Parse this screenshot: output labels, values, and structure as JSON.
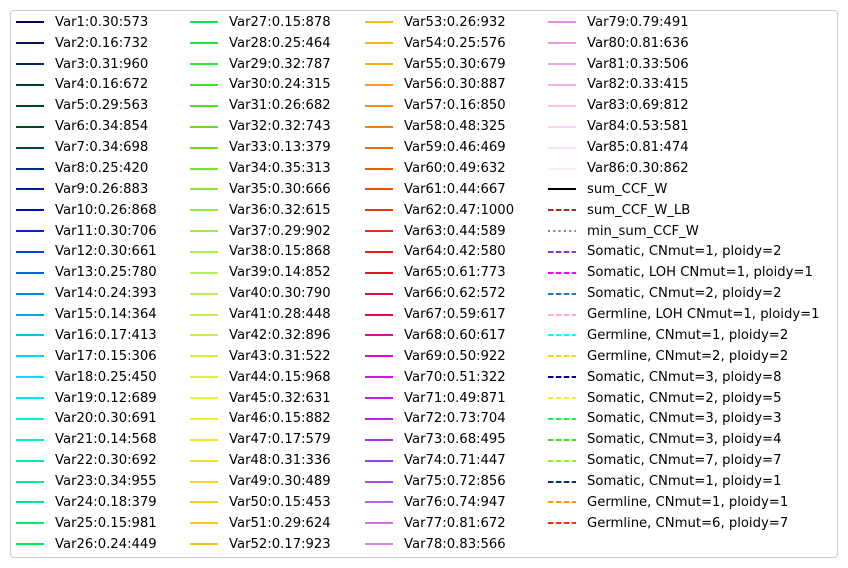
{
  "chart_data": {
    "type": "line",
    "title": "",
    "legend": {
      "placement": "full-frame",
      "columns": 4,
      "frame": true,
      "entries": [
        {
          "label": "Var1:0.30:573",
          "color": "#00004d",
          "style": "solid"
        },
        {
          "label": "Var2:0.16:732",
          "color": "#001552",
          "style": "solid"
        },
        {
          "label": "Var3:0.31:960",
          "color": "#002857",
          "style": "solid"
        },
        {
          "label": "Var4:0.16:672",
          "color": "#003b3b",
          "style": "solid"
        },
        {
          "label": "Var5:0.29:563",
          "color": "#00461d",
          "style": "solid"
        },
        {
          "label": "Var6:0.34:854",
          "color": "#004a1a",
          "style": "solid"
        },
        {
          "label": "Var7:0.34:698",
          "color": "#00404f",
          "style": "solid"
        },
        {
          "label": "Var8:0.25:420",
          "color": "#002e7a",
          "style": "solid"
        },
        {
          "label": "Var9:0.26:883",
          "color": "#001a99",
          "style": "solid"
        },
        {
          "label": "Var10:0.26:868",
          "color": "#0010b5",
          "style": "solid"
        },
        {
          "label": "Var11:0.30:706",
          "color": "#0027c7",
          "style": "solid"
        },
        {
          "label": "Var12:0.30:661",
          "color": "#0044d6",
          "style": "solid"
        },
        {
          "label": "Var13:0.25:780",
          "color": "#0066d0",
          "style": "solid"
        },
        {
          "label": "Var14:0.24:393",
          "color": "#0088dd",
          "style": "solid"
        },
        {
          "label": "Var15:0.14:364",
          "color": "#00a8e6",
          "style": "solid"
        },
        {
          "label": "Var16:0.17:413",
          "color": "#00c0f0",
          "style": "solid"
        },
        {
          "label": "Var17:0.15:306",
          "color": "#00d2f5",
          "style": "solid"
        },
        {
          "label": "Var18:0.25:450",
          "color": "#00e0f2",
          "style": "solid"
        },
        {
          "label": "Var19:0.12:689",
          "color": "#00e8ee",
          "style": "solid"
        },
        {
          "label": "Var20:0.30:691",
          "color": "#00eedd",
          "style": "solid"
        },
        {
          "label": "Var21:0.14:568",
          "color": "#00eec8",
          "style": "solid"
        },
        {
          "label": "Var22:0.30:692",
          "color": "#00eab2",
          "style": "solid"
        },
        {
          "label": "Var23:0.34:955",
          "color": "#00e89c",
          "style": "solid"
        },
        {
          "label": "Var24:0.18:379",
          "color": "#00e685",
          "style": "solid"
        },
        {
          "label": "Var25:0.15:981",
          "color": "#00e66e",
          "style": "solid"
        },
        {
          "label": "Var26:0.24:449",
          "color": "#00e655",
          "style": "solid"
        },
        {
          "label": "Var27:0.15:878",
          "color": "#10e64a",
          "style": "solid"
        },
        {
          "label": "Var28:0.25:464",
          "color": "#20e63c",
          "style": "solid"
        },
        {
          "label": "Var29:0.32:787",
          "color": "#33e633",
          "style": "solid"
        },
        {
          "label": "Var30:0.24:315",
          "color": "#44e02c",
          "style": "solid"
        },
        {
          "label": "Var31:0.26:682",
          "color": "#55dd22",
          "style": "solid"
        },
        {
          "label": "Var32:0.32:743",
          "color": "#66dd22",
          "style": "solid"
        },
        {
          "label": "Var33:0.13:379",
          "color": "#70da20",
          "style": "solid"
        },
        {
          "label": "Var34:0.35:313",
          "color": "#7ee02a",
          "style": "solid"
        },
        {
          "label": "Var35:0.30:666",
          "color": "#88e633",
          "style": "solid"
        },
        {
          "label": "Var36:0.32:615",
          "color": "#92ea3c",
          "style": "solid"
        },
        {
          "label": "Var37:0.29:902",
          "color": "#9cee44",
          "style": "solid"
        },
        {
          "label": "Var38:0.15:868",
          "color": "#a6f04c",
          "style": "solid"
        },
        {
          "label": "Var39:0.14:852",
          "color": "#b0f252",
          "style": "solid"
        },
        {
          "label": "Var40:0.30:790",
          "color": "#baf055",
          "style": "solid"
        },
        {
          "label": "Var41:0.28:448",
          "color": "#c4f052",
          "style": "solid"
        },
        {
          "label": "Var42:0.32:896",
          "color": "#ccee4a",
          "style": "solid"
        },
        {
          "label": "Var43:0.31:522",
          "color": "#d6ee44",
          "style": "solid"
        },
        {
          "label": "Var44:0.15:968",
          "color": "#e0f040",
          "style": "solid"
        },
        {
          "label": "Var45:0.32:631",
          "color": "#e8f23c",
          "style": "solid"
        },
        {
          "label": "Var46:0.15:882",
          "color": "#eeee33",
          "style": "solid"
        },
        {
          "label": "Var47:0.17:579",
          "color": "#f0e82c",
          "style": "solid"
        },
        {
          "label": "Var48:0.31:336",
          "color": "#f2e026",
          "style": "solid"
        },
        {
          "label": "Var49:0.30:489",
          "color": "#f4d822",
          "style": "solid"
        },
        {
          "label": "Var50:0.15:453",
          "color": "#f6d020",
          "style": "solid"
        },
        {
          "label": "Var51:0.29:624",
          "color": "#f7c71e",
          "style": "solid"
        },
        {
          "label": "Var52:0.17:923",
          "color": "#f8c01c",
          "style": "solid"
        },
        {
          "label": "Var53:0.26:932",
          "color": "#f8bc1a",
          "style": "solid"
        },
        {
          "label": "Var54:0.25:576",
          "color": "#f8b418",
          "style": "solid"
        },
        {
          "label": "Var55:0.30:679",
          "color": "#f8aa16",
          "style": "solid"
        },
        {
          "label": "Var56:0.30:887",
          "color": "#f89e14",
          "style": "solid"
        },
        {
          "label": "Var57:0.16:850",
          "color": "#f69012",
          "style": "solid"
        },
        {
          "label": "Var58:0.48:325",
          "color": "#f28010",
          "style": "solid"
        },
        {
          "label": "Var59:0.46:469",
          "color": "#ef6e10",
          "style": "solid"
        },
        {
          "label": "Var60:0.49:632",
          "color": "#ec5c10",
          "style": "solid"
        },
        {
          "label": "Var61:0.44:667",
          "color": "#e94a10",
          "style": "solid"
        },
        {
          "label": "Var62:0.47:1000",
          "color": "#e63a10",
          "style": "solid"
        },
        {
          "label": "Var63:0.44:589",
          "color": "#e42c12",
          "style": "solid"
        },
        {
          "label": "Var64:0.42:580",
          "color": "#e21e16",
          "style": "solid"
        },
        {
          "label": "Var65:0.61:773",
          "color": "#e0141e",
          "style": "solid"
        },
        {
          "label": "Var66:0.62:572",
          "color": "#e00e3a",
          "style": "solid"
        },
        {
          "label": "Var67:0.59:617",
          "color": "#e00a5a",
          "style": "solid"
        },
        {
          "label": "Var68:0.60:617",
          "color": "#e0089a",
          "style": "solid"
        },
        {
          "label": "Var69:0.50:922",
          "color": "#e00ad0",
          "style": "solid"
        },
        {
          "label": "Var70:0.51:322",
          "color": "#d810e2",
          "style": "solid"
        },
        {
          "label": "Var71:0.49:871",
          "color": "#c818e6",
          "style": "solid"
        },
        {
          "label": "Var72:0.73:704",
          "color": "#b824e6",
          "style": "solid"
        },
        {
          "label": "Var73:0.68:495",
          "color": "#a830e2",
          "style": "solid"
        },
        {
          "label": "Var74:0.71:447",
          "color": "#9c40e0",
          "style": "solid"
        },
        {
          "label": "Var75:0.72:856",
          "color": "#a850e0",
          "style": "solid"
        },
        {
          "label": "Var76:0.74:947",
          "color": "#b860e0",
          "style": "solid"
        },
        {
          "label": "Var77:0.81:672",
          "color": "#d470e0",
          "style": "solid"
        },
        {
          "label": "Var78:0.83:566",
          "color": "#e07ce2",
          "style": "solid"
        },
        {
          "label": "Var79:0.79:491",
          "color": "#e888e8",
          "style": "solid"
        },
        {
          "label": "Var80:0.81:636",
          "color": "#ec96e4",
          "style": "solid"
        },
        {
          "label": "Var81:0.33:506",
          "color": "#f0a4e8",
          "style": "solid"
        },
        {
          "label": "Var82:0.33:415",
          "color": "#f2b4ec",
          "style": "solid"
        },
        {
          "label": "Var83:0.69:812",
          "color": "#f4c4f0",
          "style": "solid"
        },
        {
          "label": "Var84:0.53:581",
          "color": "#f6d2f4",
          "style": "solid"
        },
        {
          "label": "Var85:0.81:474",
          "color": "#f8e0f6",
          "style": "solid"
        },
        {
          "label": "Var86:0.30:862",
          "color": "#faeefa",
          "style": "solid"
        },
        {
          "label": "sum_CCF_W",
          "color": "#000000",
          "style": "solid"
        },
        {
          "label": "sum_CCF_W_LB",
          "color": "#a52a2a",
          "style": "dashed"
        },
        {
          "label": "min_sum_CCF_W",
          "color": "#808080",
          "style": "dotted"
        },
        {
          "label": "Somatic, CNmut=1, ploidy=2",
          "color": "#9932cc",
          "style": "dashed"
        },
        {
          "label": "Somatic, LOH CNmut=1, ploidy=1",
          "color": "#ff00ff",
          "style": "dashed"
        },
        {
          "label": "Somatic, CNmut=2, ploidy=2",
          "color": "#1f77b4",
          "style": "dashed"
        },
        {
          "label": "Germline, LOH CNmut=1, ploidy=1",
          "color": "#ffaaee",
          "style": "dashed"
        },
        {
          "label": "Germline, CNmut=1, ploidy=2",
          "color": "#00ffff",
          "style": "dashed"
        },
        {
          "label": "Germline, CNmut=2, ploidy=2",
          "color": "#ffd700",
          "style": "dashed"
        },
        {
          "label": "Somatic, CNmut=3, ploidy=8",
          "color": "#000080",
          "style": "dashed"
        },
        {
          "label": "Somatic, CNmut=2, ploidy=5",
          "color": "#e8f040",
          "style": "dashed"
        },
        {
          "label": "Somatic, CNmut=3, ploidy=3",
          "color": "#20f050",
          "style": "dashed"
        },
        {
          "label": "Somatic, CNmut=3, ploidy=4",
          "color": "#40e020",
          "style": "dashed"
        },
        {
          "label": "Somatic, CNmut=7, ploidy=7",
          "color": "#90ee30",
          "style": "dashed"
        },
        {
          "label": "Somatic, CNmut=1, ploidy=1",
          "color": "#003366",
          "style": "dashed"
        },
        {
          "label": "Germline, CNmut=1, ploidy=1",
          "color": "#ff9900",
          "style": "dashed"
        },
        {
          "label": "Germline, CNmut=6, ploidy=7",
          "color": "#ee3311",
          "style": "dashed"
        }
      ]
    }
  }
}
